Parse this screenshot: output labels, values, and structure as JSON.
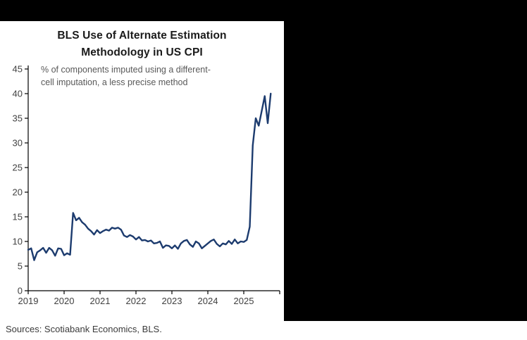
{
  "title": {
    "line1": "BLS Use of Alternate Estimation",
    "line2": "Methodology in US CPI"
  },
  "footer": {
    "sources": "Sources: Scotiabank Economics, BLS."
  },
  "chart_data": {
    "type": "line",
    "title": "BLS Use of Alternate Estimation Methodology in US CPI",
    "annotation_lines": [
      "% of components imputed using a different-",
      "cell imputation, a less precise method"
    ],
    "x_tick_labels": [
      "2019",
      "2020",
      "2021",
      "2022",
      "2023",
      "2024",
      "2025"
    ],
    "months_per_tick": 12,
    "x_axis_total_months": 84,
    "ylim": [
      0,
      45
    ],
    "ytick_step": 5,
    "grid": false,
    "legend": "none",
    "line_color": "#1c3b6e",
    "axis_color": "#000000",
    "tick_label_color": "#404040",
    "annotation_color": "#595959",
    "series": [
      {
        "name": "% of components imputed using a different-cell imputation",
        "start": "2019-01",
        "frequency": "monthly",
        "values": [
          8.3,
          8.6,
          6.2,
          7.8,
          8.2,
          8.7,
          7.7,
          8.7,
          8.2,
          7.1,
          8.6,
          8.5,
          7.2,
          7.6,
          7.3,
          15.8,
          14.3,
          14.8,
          13.9,
          13.4,
          12.6,
          12.1,
          11.4,
          12.3,
          11.7,
          12.1,
          12.4,
          12.2,
          12.8,
          12.6,
          12.8,
          12.4,
          11.2,
          10.9,
          11.3,
          11.0,
          10.4,
          10.9,
          10.2,
          10.3,
          10.0,
          10.2,
          9.6,
          9.7,
          10.0,
          8.7,
          9.2,
          9.1,
          8.6,
          9.2,
          8.5,
          9.6,
          10.1,
          10.3,
          9.4,
          8.9,
          10.0,
          9.6,
          8.6,
          9.1,
          9.6,
          10.1,
          10.4,
          9.5,
          9.0,
          9.6,
          9.4,
          10.1,
          9.5,
          10.4,
          9.6,
          10.0,
          9.9,
          10.3,
          13.0,
          29.5,
          35.0,
          33.5,
          36.5,
          39.5,
          34.0,
          40.0
        ]
      }
    ]
  }
}
